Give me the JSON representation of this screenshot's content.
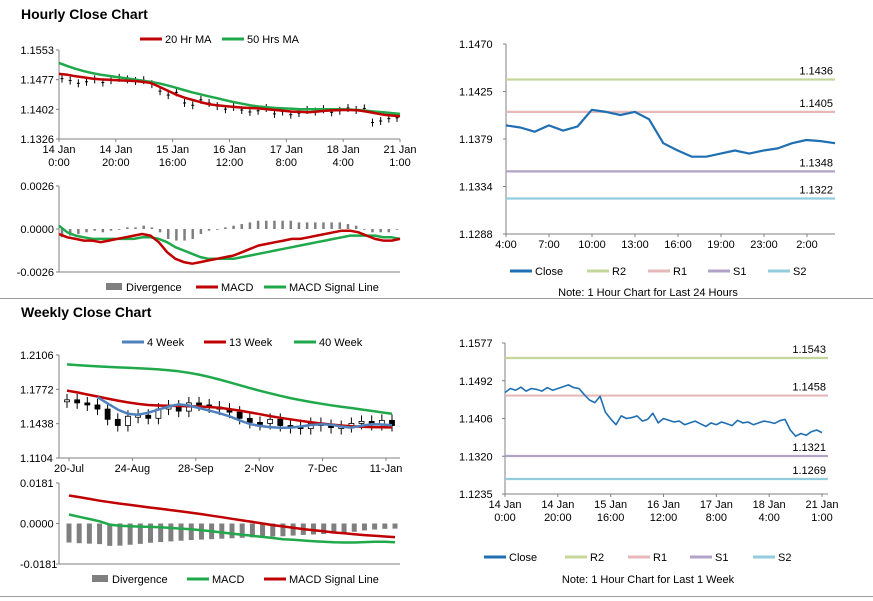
{
  "titles": {
    "hourly": "Hourly Close Chart",
    "weekly": "Weekly Close Chart"
  },
  "colors": {
    "ma20": "#c00000",
    "ma50": "#1fa94a",
    "close": "#1f6fb2",
    "r2": "#c4d79b",
    "r1": "#e6b9b8",
    "s1": "#b3a2c7",
    "s2": "#93cddd",
    "divergence": "#7f7f7f",
    "w4": "#4f81bd",
    "w13": "#c00000",
    "w40": "#1fa94a",
    "axis": "#808080"
  },
  "chart_data": [
    {
      "id": "hourly_price",
      "type": "line",
      "title": "Hourly Close Chart",
      "legend": [
        "20 Hr MA",
        "50 Hrs MA"
      ],
      "yticks": [
        "1.1553",
        "1.1477",
        "1.1402",
        "1.1326"
      ],
      "ylim": [
        1.1326,
        1.1553
      ],
      "xticks": [
        [
          "14 Jan",
          "0:00"
        ],
        [
          "14 Jan",
          "20:00"
        ],
        [
          "15 Jan",
          "16:00"
        ],
        [
          "16 Jan",
          "12:00"
        ],
        [
          "17 Jan",
          "8:00"
        ],
        [
          "18 Jan",
          "4:00"
        ],
        [
          "21 Jan",
          "1:00"
        ]
      ],
      "ma20": [
        1.1492,
        1.149,
        1.1486,
        1.1483,
        1.148,
        1.1478,
        1.1477,
        1.1476,
        1.1475,
        1.1474,
        1.1472,
        1.1469,
        1.146,
        1.145,
        1.144,
        1.1432,
        1.1426,
        1.142,
        1.1415,
        1.1412,
        1.141,
        1.1408,
        1.1406,
        1.1405,
        1.1404,
        1.1402,
        1.14,
        1.1398,
        1.1396,
        1.1395,
        1.1394,
        1.1396,
        1.1398,
        1.1399,
        1.14,
        1.14,
        1.1399,
        1.1396,
        1.1392,
        1.1388,
        1.1386,
        1.1384
      ],
      "ma50": [
        1.152,
        1.1512,
        1.1505,
        1.1499,
        1.1494,
        1.149,
        1.1487,
        1.1484,
        1.1481,
        1.1478,
        1.1475,
        1.1472,
        1.1468,
        1.1463,
        1.1457,
        1.1451,
        1.1445,
        1.144,
        1.1435,
        1.143,
        1.1425,
        1.142,
        1.1416,
        1.1412,
        1.1409,
        1.1407,
        1.1405,
        1.1404,
        1.1403,
        1.1402,
        1.1402,
        1.1402,
        1.1402,
        1.1402,
        1.1402,
        1.1401,
        1.14,
        1.1398,
        1.1396,
        1.1394,
        1.1392,
        1.139
      ],
      "close": [
        1.148,
        1.1475,
        1.1468,
        1.1472,
        1.1478,
        1.147,
        1.1476,
        1.1482,
        1.1478,
        1.1474,
        1.1476,
        1.1466,
        1.1448,
        1.1438,
        1.1445,
        1.1418,
        1.1412,
        1.1426,
        1.1418,
        1.141,
        1.1402,
        1.1408,
        1.14,
        1.1395,
        1.1398,
        1.1405,
        1.139,
        1.1396,
        1.1388,
        1.1392,
        1.14,
        1.1396,
        1.1402,
        1.1394,
        1.1398,
        1.1405,
        1.14,
        1.1404,
        1.1368,
        1.1372,
        1.1378,
        1.138
      ]
    },
    {
      "id": "hourly_macd",
      "type": "line",
      "legend": [
        "Divergence",
        "MACD",
        "MACD Signal Line"
      ],
      "yticks": [
        "0.0026",
        "0.0000",
        "-0.0026"
      ],
      "ylim": [
        -0.0026,
        0.0026
      ],
      "macd": [
        -0.0003,
        -0.0005,
        -0.0006,
        -0.0007,
        -0.0007,
        -0.0008,
        -0.0007,
        -0.0006,
        -0.0005,
        -0.0004,
        -0.0003,
        -0.0004,
        -0.0008,
        -0.0014,
        -0.0018,
        -0.002,
        -0.0021,
        -0.002,
        -0.0019,
        -0.0018,
        -0.0017,
        -0.0016,
        -0.0014,
        -0.0012,
        -0.001,
        -0.0009,
        -0.0008,
        -0.0007,
        -0.0006,
        -0.0006,
        -0.0005,
        -0.0004,
        -0.0003,
        -0.0002,
        -0.0001,
        -0.0001,
        -0.0002,
        -0.0004,
        -0.0006,
        -0.0007,
        -0.0007,
        -0.0006
      ],
      "signal": [
        0.0002,
        -0.0002,
        -0.0004,
        -0.0005,
        -0.0006,
        -0.0006,
        -0.0006,
        -0.0006,
        -0.0006,
        -0.0006,
        -0.0005,
        -0.0005,
        -0.0006,
        -0.0008,
        -0.0011,
        -0.0013,
        -0.0015,
        -0.0017,
        -0.0018,
        -0.0018,
        -0.0018,
        -0.0018,
        -0.0017,
        -0.0016,
        -0.0015,
        -0.0014,
        -0.0013,
        -0.0012,
        -0.0011,
        -0.001,
        -0.0009,
        -0.0008,
        -0.0007,
        -0.0006,
        -0.0005,
        -0.0004,
        -0.0004,
        -0.0004,
        -0.0004,
        -0.0005,
        -0.0005,
        -0.0006
      ],
      "divergence": [
        -0.0005,
        -0.0004,
        -0.0003,
        -0.0002,
        -0.0001,
        -0.0002,
        -0.0001,
        0,
        0.0001,
        0.0001,
        0.0002,
        0.0001,
        -0.0002,
        -0.0006,
        -0.0007,
        -0.0007,
        -0.0006,
        -0.0003,
        -0.0001,
        0,
        0.0001,
        0.0002,
        0.0003,
        0.0004,
        0.0005,
        0.0005,
        0.0005,
        0.0005,
        0.0005,
        0.0004,
        0.0004,
        0.0004,
        0.0004,
        0.0004,
        0.0004,
        0.0003,
        0.0002,
        0,
        -0.0002,
        -0.0002,
        -0.0002,
        0
      ]
    },
    {
      "id": "day_close",
      "type": "line",
      "note": "Note: 1 Hour Chart for Last 24 Hours",
      "legend": [
        "Close",
        "R2",
        "R1",
        "S1",
        "S2"
      ],
      "yticks": [
        "1.1470",
        "1.1425",
        "1.1379",
        "1.1334",
        "1.1288"
      ],
      "ylim": [
        1.1288,
        1.147
      ],
      "xticks": [
        "4:00",
        "7:00",
        "10:00",
        "13:00",
        "16:00",
        "19:00",
        "23:00",
        "2:00"
      ],
      "levels": {
        "r2": 1.1436,
        "r1": 1.1405,
        "s1": 1.1348,
        "s2": 1.1322
      },
      "level_labels": {
        "r2": "1.1436",
        "r1": "1.1405",
        "s1": "1.1348",
        "s2": "1.1322"
      },
      "close": [
        1.1392,
        1.139,
        1.1386,
        1.1392,
        1.1387,
        1.1391,
        1.1407,
        1.1405,
        1.1402,
        1.1405,
        1.1398,
        1.1375,
        1.1368,
        1.1362,
        1.1362,
        1.1365,
        1.1368,
        1.1365,
        1.1368,
        1.137,
        1.1375,
        1.1378,
        1.1377,
        1.1375
      ]
    },
    {
      "id": "weekly_price",
      "type": "line",
      "title": "Weekly Close Chart",
      "legend": [
        "4 Week",
        "13 Week",
        "40 Week"
      ],
      "yticks": [
        "1.2106",
        "1.1772",
        "1.1438",
        "1.1104"
      ],
      "ylim": [
        1.1104,
        1.2106
      ],
      "xticks": [
        "20-Jul",
        "24-Aug",
        "28-Sep",
        "2-Nov",
        "7-Dec",
        "11-Jan"
      ],
      "w4": [
        null,
        null,
        null,
        1.1695,
        1.1635,
        1.1575,
        1.1535,
        1.1525,
        1.1545,
        1.1575,
        1.1605,
        1.1625,
        1.1615,
        1.159,
        1.1565,
        1.154,
        1.151,
        1.147,
        1.1435,
        1.1415,
        1.1405,
        1.1398,
        1.14,
        1.141,
        1.1425,
        1.1432,
        1.1428,
        1.141,
        1.14,
        1.1418,
        1.1432,
        1.143,
        1.1423
      ],
      "w13": [
        1.176,
        1.1742,
        1.1722,
        1.1702,
        1.1682,
        1.1662,
        1.1645,
        1.163,
        1.162,
        1.1615,
        1.1612,
        1.161,
        1.1608,
        1.1605,
        1.16,
        1.1592,
        1.158,
        1.1565,
        1.1548,
        1.153,
        1.1512,
        1.1495,
        1.148,
        1.1466,
        1.1452,
        1.144,
        1.143,
        1.142,
        1.1412,
        1.1408,
        1.1405,
        1.1403,
        1.1402
      ],
      "w40": [
        1.2015,
        1.2008,
        1.2001,
        1.1995,
        1.199,
        1.1985,
        1.1981,
        1.1977,
        1.1972,
        1.1966,
        1.1958,
        1.1947,
        1.1933,
        1.1915,
        1.1893,
        1.1868,
        1.184,
        1.1812,
        1.1784,
        1.1758,
        1.1733,
        1.1709,
        1.1687,
        1.1667,
        1.1649,
        1.1632,
        1.1617,
        1.1603,
        1.159,
        1.1576,
        1.1562,
        1.1548,
        1.1535
      ],
      "close": [
        1.167,
        1.164,
        1.162,
        1.158,
        1.148,
        1.142,
        1.151,
        1.152,
        1.149,
        1.158,
        1.161,
        1.156,
        1.164,
        1.162,
        1.16,
        1.158,
        1.155,
        1.149,
        1.145,
        1.144,
        1.148,
        1.142,
        1.141,
        1.139,
        1.144,
        1.142,
        1.14,
        1.141,
        1.144,
        1.146,
        1.143,
        1.147,
        1.142
      ]
    },
    {
      "id": "weekly_macd",
      "type": "line",
      "legend": [
        "Divergence",
        "MACD",
        "MACD Signal Line"
      ],
      "yticks": [
        "0.0181",
        "0.0000",
        "-0.0181"
      ],
      "ylim": [
        -0.0181,
        0.0181
      ],
      "macd": [
        0.004,
        0.003,
        0.002,
        0.001,
        -0.0005,
        -0.001,
        -0.0012,
        -0.0014,
        -0.0015,
        -0.0017,
        -0.002,
        -0.0023,
        -0.0026,
        -0.003,
        -0.0035,
        -0.004,
        -0.0045,
        -0.005,
        -0.0055,
        -0.006,
        -0.0065,
        -0.007,
        -0.0073,
        -0.0076,
        -0.0079,
        -0.0082,
        -0.0084,
        -0.0085,
        -0.0085,
        -0.0083,
        -0.0082,
        -0.0082,
        -0.0084
      ],
      "signal": [
        0.0125,
        0.0118,
        0.011,
        0.0102,
        0.0095,
        0.0089,
        0.0083,
        0.0077,
        0.0071,
        0.0066,
        0.006,
        0.0054,
        0.0048,
        0.0042,
        0.0035,
        0.0028,
        0.0021,
        0.0014,
        0.0007,
        0,
        -0.0007,
        -0.0013,
        -0.0019,
        -0.0025,
        -0.003,
        -0.0035,
        -0.004,
        -0.0044,
        -0.0048,
        -0.0052,
        -0.0055,
        -0.0058,
        -0.0061
      ],
      "divergence": [
        -0.0085,
        -0.0088,
        -0.009,
        -0.0092,
        -0.01,
        -0.0099,
        -0.0095,
        -0.0091,
        -0.0086,
        -0.0083,
        -0.008,
        -0.0077,
        -0.0074,
        -0.0072,
        -0.007,
        -0.0068,
        -0.0066,
        -0.0064,
        -0.0062,
        -0.006,
        -0.0058,
        -0.0057,
        -0.0054,
        -0.0051,
        -0.0049,
        -0.0047,
        -0.0044,
        -0.0041,
        -0.0037,
        -0.0031,
        -0.0027,
        -0.0024,
        -0.0023
      ]
    },
    {
      "id": "week_close",
      "type": "line",
      "note": "Note: 1 Hour Chart for Last 1 Week",
      "legend": [
        "Close",
        "R2",
        "R1",
        "S1",
        "S2"
      ],
      "yticks": [
        "1.1577",
        "1.1492",
        "1.1406",
        "1.1320",
        "1.1235"
      ],
      "ylim": [
        1.1235,
        1.1577
      ],
      "xticks": [
        [
          "14 Jan",
          "0:00"
        ],
        [
          "14 Jan",
          "20:00"
        ],
        [
          "15 Jan",
          "16:00"
        ],
        [
          "16 Jan",
          "12:00"
        ],
        [
          "17 Jan",
          "8:00"
        ],
        [
          "18 Jan",
          "4:00"
        ],
        [
          "21 Jan",
          "1:00"
        ]
      ],
      "levels": {
        "r2": 1.1543,
        "r1": 1.1458,
        "s1": 1.1321,
        "s2": 1.1269
      },
      "level_labels": {
        "r2": "1.1543",
        "r1": "1.1458",
        "s1": "1.1321",
        "s2": "1.1269"
      },
      "close": [
        1.1465,
        1.1474,
        1.147,
        1.1477,
        1.1468,
        1.1474,
        1.1472,
        1.1468,
        1.1476,
        1.147,
        1.1474,
        1.1478,
        1.1482,
        1.1476,
        1.1474,
        1.146,
        1.1448,
        1.1442,
        1.1456,
        1.142,
        1.1405,
        1.1392,
        1.1412,
        1.1406,
        1.1408,
        1.1412,
        1.14,
        1.1404,
        1.1418,
        1.1396,
        1.1406,
        1.1402,
        1.1398,
        1.14,
        1.1392,
        1.1396,
        1.14,
        1.1394,
        1.1388,
        1.1396,
        1.1392,
        1.1398,
        1.1394,
        1.139,
        1.1402,
        1.1396,
        1.1398,
        1.1392,
        1.1396,
        1.14,
        1.1398,
        1.1395,
        1.1401,
        1.1404,
        1.138,
        1.1366,
        1.1372,
        1.1368,
        1.1376,
        1.138,
        1.1374
      ]
    }
  ]
}
